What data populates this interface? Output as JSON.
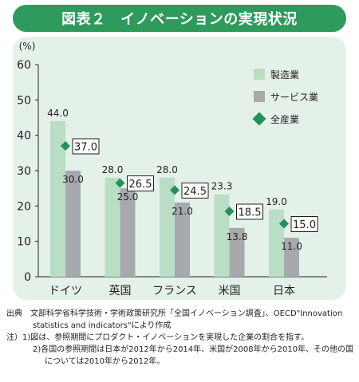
{
  "title": "図表２　イノベーションの実現状況",
  "chart_data": {
    "type": "bar",
    "categories": [
      "ドイツ",
      "英国",
      "フランス",
      "米国",
      "日本"
    ],
    "series": [
      {
        "name": "製造業",
        "values": [
          44.0,
          28.0,
          28.0,
          23.3,
          19.0
        ],
        "labels": [
          "44.0",
          "28.0",
          "28.0",
          "23.3",
          "19.0"
        ],
        "color": "#b9dec5"
      },
      {
        "name": "サービス業",
        "values": [
          30.0,
          25.0,
          21.0,
          13.8,
          11.0
        ],
        "labels": [
          "30.0",
          "25.0",
          "21.0",
          "13.8",
          "11.0"
        ],
        "color": "#a7a9ac"
      },
      {
        "name": "全産業",
        "values": [
          37.0,
          26.5,
          24.5,
          18.5,
          15.0
        ],
        "labels": [
          "37.0",
          "26.5",
          "24.5",
          "18.5",
          "15.0"
        ],
        "color": "#22915a",
        "marker": "diamond"
      }
    ],
    "yunit": "(%)",
    "ylim": [
      0,
      60
    ],
    "yticks": [
      0,
      10,
      20,
      30,
      40,
      50,
      60
    ],
    "ytick_labels": [
      "0",
      "10",
      "20",
      "30",
      "40",
      "50",
      "60"
    ],
    "legend_position": "top-right",
    "grid": false
  },
  "notes": {
    "source_line1": "出典　文部科学省科学技術・学術政策研究所「全国イノベーション調査」、OECD\"Innovation",
    "source_line2": "statistics and indicators\"により作成",
    "note1": "注）1)図は、参照期間にプロダクト・イノベーションを実現した企業の割合を指す。",
    "note2_line1": "2)各国の参照期間は日本が2012年から2014年、米国が2008年から2010年、その他の国",
    "note2_line2": "については2010年から2012年。"
  }
}
